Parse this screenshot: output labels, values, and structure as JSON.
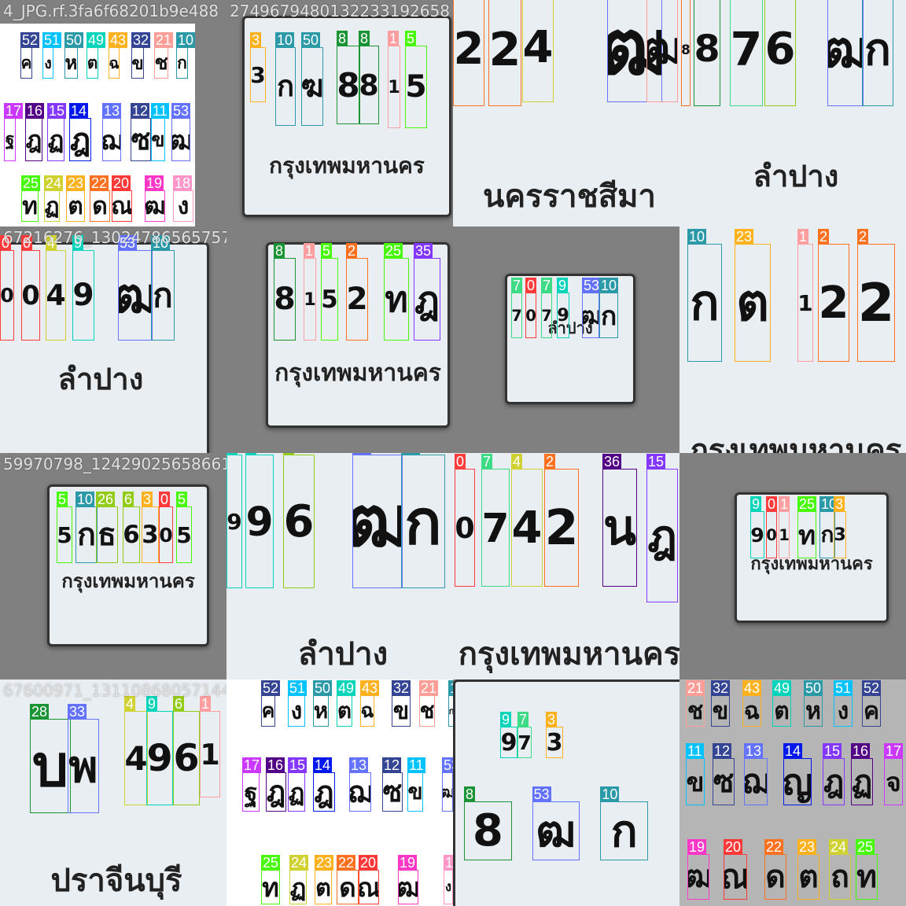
{
  "colors": {
    "0": "#ff3b3b",
    "1": "#ff9e9e",
    "2": "#ff701f",
    "3": "#ffb21d",
    "4": "#cfd231",
    "5": "#48f90a",
    "6": "#92cc17",
    "7": "#3ddb86",
    "8": "#1a9334",
    "9": "#00d4bb",
    "10": "#2c99a8",
    "11": "#00c2ff",
    "12": "#344593",
    "13": "#6473ff",
    "14": "#0018ec",
    "15": "#8438ff",
    "16": "#520085",
    "17": "#cb38ff",
    "18": "#ff95c8",
    "19": "#ff37c7",
    "20": "#ff3838",
    "21": "#ff9d97",
    "22": "#ff701f",
    "23": "#ffb21d",
    "24": "#cfd231",
    "25": "#48f90a",
    "26": "#92cc17",
    "28": "#1a9334",
    "32": "#344593",
    "33": "#6473ff",
    "35": "#8438ff",
    "36": "#520085",
    "43": "#ffb21d",
    "49": "#00d4bb",
    "50": "#2c99a8",
    "51": "#00c2ff",
    "52": "#344593",
    "53": "#6473ff"
  },
  "tiles": [
    {
      "caption": "4_JPG.rf.3fa6f68201b9e488",
      "background": "white-left",
      "plate_text": "",
      "boxes": [
        {
          "label": "52",
          "glyph": "ค"
        },
        {
          "label": "51",
          "glyph": "ง"
        },
        {
          "label": "50",
          "glyph": "ห"
        },
        {
          "label": "49",
          "glyph": "ต"
        },
        {
          "label": "43",
          "glyph": "ฉ"
        },
        {
          "label": "32",
          "glyph": "ข"
        },
        {
          "label": "21",
          "glyph": "ช"
        },
        {
          "label": "10",
          "glyph": "ก"
        },
        {
          "label": "17",
          "glyph": "ฐ"
        },
        {
          "label": "16",
          "glyph": "ฎ"
        },
        {
          "label": "15",
          "glyph": "ฏ"
        },
        {
          "label": "14",
          "glyph": "ฎ"
        },
        {
          "label": "13",
          "glyph": "ฌ"
        },
        {
          "label": "12",
          "glyph": "ซ"
        },
        {
          "label": "11",
          "glyph": "ข"
        },
        {
          "label": "53",
          "glyph": "ฒ"
        },
        {
          "label": "25",
          "glyph": "ท"
        },
        {
          "label": "24",
          "glyph": "ฏ"
        },
        {
          "label": "23",
          "glyph": "ต"
        },
        {
          "label": "22",
          "glyph": "ด"
        },
        {
          "label": "20",
          "glyph": "ณ"
        },
        {
          "label": "19",
          "glyph": "ฒ"
        },
        {
          "label": "18",
          "glyph": "ง"
        }
      ]
    },
    {
      "caption": "2749679480132233192658",
      "plate_text": "กรุงเทพมหานคร",
      "boxes": [
        {
          "label": "3",
          "glyph": "3"
        },
        {
          "label": "10",
          "glyph": "ก"
        },
        {
          "label": "50",
          "glyph": "ฆ"
        },
        {
          "label": "8",
          "glyph": "8"
        },
        {
          "label": "8",
          "glyph": "8"
        },
        {
          "label": "1",
          "glyph": "1"
        },
        {
          "label": "5",
          "glyph": "5"
        }
      ]
    },
    {
      "caption": "",
      "plate_text": "นครราชสีมา",
      "boxes": [
        {
          "label": "2",
          "glyph": "2"
        },
        {
          "label": "2",
          "glyph": "2"
        },
        {
          "label": "4",
          "glyph": "4"
        },
        {
          "label": "53",
          "glyph": "ฒ"
        },
        {
          "label": "21",
          "glyph": "ฒ"
        }
      ]
    },
    {
      "caption": "",
      "plate_text": "ลำปาง",
      "boxes": [
        {
          "label": "2",
          "glyph": "8"
        },
        {
          "label": "8",
          "glyph": "8"
        },
        {
          "label": "7",
          "glyph": "7"
        },
        {
          "label": "6",
          "glyph": "6"
        },
        {
          "label": "53",
          "glyph": "ฒ"
        },
        {
          "label": "10",
          "glyph": "ก"
        }
      ]
    },
    {
      "caption": "67216276_13024786565757",
      "plate_text": "ลำปาง",
      "boxes": [
        {
          "label": "0",
          "glyph": "0"
        },
        {
          "label": "0",
          "glyph": "0"
        },
        {
          "label": "4",
          "glyph": "4"
        },
        {
          "label": "9",
          "glyph": "9"
        },
        {
          "label": "53",
          "glyph": "ฒ"
        },
        {
          "label": "10",
          "glyph": "ก"
        }
      ]
    },
    {
      "caption": "",
      "plate_text": "กรุงเทพมหานคร",
      "boxes": [
        {
          "label": "8",
          "glyph": "8"
        },
        {
          "label": "1",
          "glyph": "1"
        },
        {
          "label": "5",
          "glyph": "5"
        },
        {
          "label": "2",
          "glyph": "2"
        },
        {
          "label": "25",
          "glyph": "ท"
        },
        {
          "label": "35",
          "glyph": "ฎ"
        }
      ]
    },
    {
      "caption": "",
      "plate_text": "ลำปาง",
      "boxes": [
        {
          "label": "7",
          "glyph": "7"
        },
        {
          "label": "0",
          "glyph": "0"
        },
        {
          "label": "7",
          "glyph": "7"
        },
        {
          "label": "9",
          "glyph": "9"
        },
        {
          "label": "53",
          "glyph": "ฒ"
        },
        {
          "label": "10",
          "glyph": "ก"
        }
      ]
    },
    {
      "caption": "",
      "plate_text": "กรุงเทพมหานคร",
      "boxes": [
        {
          "label": "10",
          "glyph": "ก"
        },
        {
          "label": "23",
          "glyph": "ต"
        },
        {
          "label": "1",
          "glyph": "1"
        },
        {
          "label": "2",
          "glyph": "2"
        },
        {
          "label": "2",
          "glyph": "2"
        }
      ]
    },
    {
      "caption": "59970798_12429025658661",
      "plate_text": "กรุงเทพมหานคร",
      "boxes": [
        {
          "label": "5",
          "glyph": "5"
        },
        {
          "label": "10",
          "glyph": "ก"
        },
        {
          "label": "26",
          "glyph": "ธ"
        },
        {
          "label": "6",
          "glyph": "6"
        },
        {
          "label": "3",
          "glyph": "3"
        },
        {
          "label": "0",
          "glyph": "0"
        },
        {
          "label": "5",
          "glyph": "5"
        }
      ]
    },
    {
      "caption": "",
      "plate_text": "ลำปาง",
      "boxes": [
        {
          "label": "9",
          "glyph": "9"
        },
        {
          "label": "9",
          "glyph": "9"
        },
        {
          "label": "6",
          "glyph": "6"
        },
        {
          "label": "53",
          "glyph": "ฒ"
        },
        {
          "label": "10",
          "glyph": "ก"
        }
      ]
    },
    {
      "caption": "",
      "plate_text": "กรุงเทพมหานคร",
      "boxes": [
        {
          "label": "0",
          "glyph": "0"
        },
        {
          "label": "7",
          "glyph": "7"
        },
        {
          "label": "4",
          "glyph": "4"
        },
        {
          "label": "2",
          "glyph": "2"
        },
        {
          "label": "36",
          "glyph": "น"
        },
        {
          "label": "15",
          "glyph": "ฎ"
        }
      ]
    },
    {
      "caption": "",
      "plate_text": "กรุงเทพมหานคร",
      "boxes": [
        {
          "label": "9",
          "glyph": "9"
        },
        {
          "label": "0",
          "glyph": "0"
        },
        {
          "label": "1",
          "glyph": "1"
        },
        {
          "label": "25",
          "glyph": "ท"
        },
        {
          "label": "10",
          "glyph": "ก"
        },
        {
          "label": "3",
          "glyph": "3"
        }
      ]
    },
    {
      "caption": "67600971_13110868057144",
      "plate_text": "ปราจีนบุรี",
      "boxes": [
        {
          "label": "28",
          "glyph": "บ"
        },
        {
          "label": "33",
          "glyph": "พ"
        },
        {
          "label": "4",
          "glyph": "4"
        },
        {
          "label": "9",
          "glyph": "9"
        },
        {
          "label": "6",
          "glyph": "6"
        },
        {
          "label": "1",
          "glyph": "1"
        }
      ]
    },
    {
      "caption": "",
      "background": "white",
      "plate_text": "",
      "boxes": [
        {
          "label": "52",
          "glyph": "ค"
        },
        {
          "label": "51",
          "glyph": "ง"
        },
        {
          "label": "50",
          "glyph": "ห"
        },
        {
          "label": "49",
          "glyph": "ต"
        },
        {
          "label": "43",
          "glyph": "ฉ"
        },
        {
          "label": "32",
          "glyph": "ข"
        },
        {
          "label": "21",
          "glyph": "ช"
        },
        {
          "label": "10",
          "glyph": "ก"
        },
        {
          "label": "17",
          "glyph": "ฐ"
        },
        {
          "label": "16",
          "glyph": "ฎ"
        },
        {
          "label": "15",
          "glyph": "ฏ"
        },
        {
          "label": "14",
          "glyph": "ฎ"
        },
        {
          "label": "13",
          "glyph": "ฌ"
        },
        {
          "label": "12",
          "glyph": "ซ"
        },
        {
          "label": "11",
          "glyph": "ข"
        },
        {
          "label": "53",
          "glyph": "ฒ"
        },
        {
          "label": "25",
          "glyph": "ท"
        },
        {
          "label": "24",
          "glyph": "ฏ"
        },
        {
          "label": "23",
          "glyph": "ต"
        },
        {
          "label": "22",
          "glyph": "ด"
        },
        {
          "label": "20",
          "glyph": "ณ"
        },
        {
          "label": "19",
          "glyph": "ฒ"
        },
        {
          "label": "18",
          "glyph": "ง"
        }
      ]
    },
    {
      "caption": "",
      "plate_text": "ลำปาง",
      "boxes": [
        {
          "label": "9",
          "glyph": "9"
        },
        {
          "label": "3",
          "glyph": "3"
        },
        {
          "label": "7",
          "glyph": "7"
        },
        {
          "label": "8",
          "glyph": "8"
        },
        {
          "label": "53",
          "glyph": "ฒ"
        },
        {
          "label": "10",
          "glyph": "ก"
        }
      ]
    },
    {
      "caption": "",
      "background": "lightgray",
      "plate_text": "",
      "boxes": [
        {
          "label": "21",
          "glyph": "ช"
        },
        {
          "label": "32",
          "glyph": "ข"
        },
        {
          "label": "43",
          "glyph": "ฉ"
        },
        {
          "label": "49",
          "glyph": "ต"
        },
        {
          "label": "50",
          "glyph": "ห"
        },
        {
          "label": "51",
          "glyph": "ง"
        },
        {
          "label": "52",
          "glyph": "ค"
        },
        {
          "label": "11",
          "glyph": "ข"
        },
        {
          "label": "12",
          "glyph": "ซ"
        },
        {
          "label": "13",
          "glyph": "ฌ"
        },
        {
          "label": "14",
          "glyph": "ญ"
        },
        {
          "label": "15",
          "glyph": "ฎ"
        },
        {
          "label": "16",
          "glyph": "ฏ"
        },
        {
          "label": "17",
          "glyph": "จ"
        },
        {
          "label": "19",
          "glyph": "ฒ"
        },
        {
          "label": "20",
          "glyph": "ณ"
        },
        {
          "label": "22",
          "glyph": "ด"
        },
        {
          "label": "23",
          "glyph": "ต"
        },
        {
          "label": "24",
          "glyph": "ถ"
        },
        {
          "label": "25",
          "glyph": "ท"
        }
      ]
    }
  ]
}
